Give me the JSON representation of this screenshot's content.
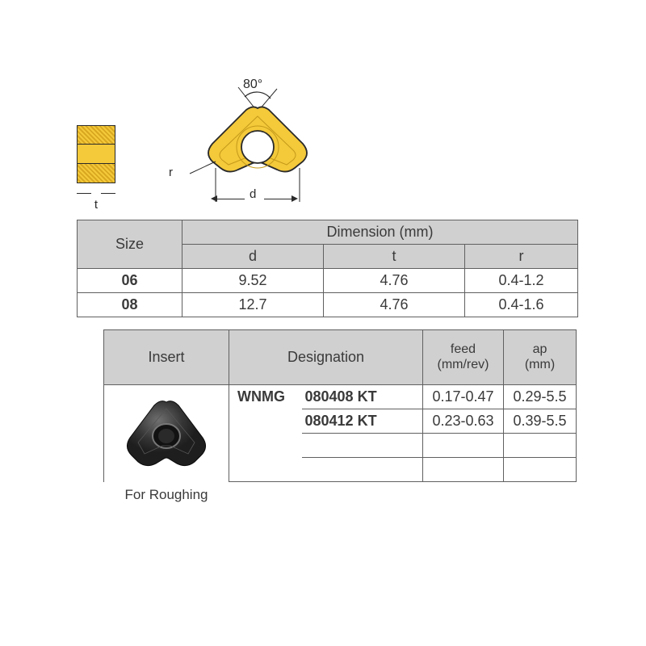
{
  "diagram": {
    "angle_label": "80°",
    "t_label": "t",
    "d_label": "d",
    "r_label": "r",
    "insert_colors": {
      "fill": "#f4c93a",
      "stroke": "#2a2a2a",
      "hole_fill": "#ffffff"
    }
  },
  "table1": {
    "size_header": "Size",
    "dim_header": "Dimension (mm)",
    "cols": {
      "d": "d",
      "t": "t",
      "r": "r"
    },
    "rows": [
      {
        "size": "06",
        "d": "9.52",
        "t": "4.76",
        "r": "0.4-1.2"
      },
      {
        "size": "08",
        "d": "12.7",
        "t": "4.76",
        "r": "0.4-1.6"
      }
    ]
  },
  "table2": {
    "headers": {
      "insert": "Insert",
      "designation": "Designation",
      "feed": "feed (mm/rev)",
      "ap": "ap (mm)"
    },
    "caption": "For Roughing",
    "designation_prefix": "WNMG",
    "rows": [
      {
        "code": "080408 KT",
        "feed": "0.17-0.47",
        "ap": "0.29-5.5"
      },
      {
        "code": "080412 KT",
        "feed": "0.23-0.63",
        "ap": "0.39-5.5"
      }
    ],
    "dark_insert_colors": {
      "body": "#2e2e2e",
      "highlight": "#6a6a6a",
      "hole": "#1a1a1a",
      "hole_rim": "#888888"
    }
  },
  "style": {
    "header_bg": "#d0d0d0",
    "border": "#606060",
    "text": "#3a3a3a",
    "body_font_size": 18
  }
}
